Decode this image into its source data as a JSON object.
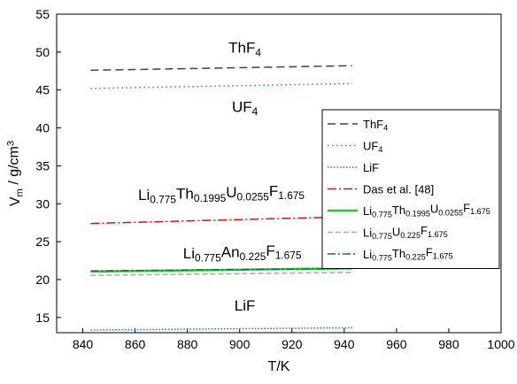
{
  "chart_data": {
    "type": "line",
    "xlabel": "T/K",
    "ylabel": "V_m / g/cm^3",
    "xlim": [
      830,
      1000
    ],
    "ylim": [
      13,
      55
    ],
    "xticks": [
      840,
      860,
      880,
      900,
      920,
      940,
      960,
      980,
      1000
    ],
    "yticks": [
      15,
      20,
      25,
      30,
      35,
      40,
      45,
      50,
      55
    ],
    "grid": false,
    "legend_position": "right",
    "series": [
      {
        "name": "ThF4",
        "color": "#444444",
        "dash": "9,5",
        "width": 1.5,
        "x": [
          843,
          943
        ],
        "y": [
          47.6,
          48.2
        ]
      },
      {
        "name": "UF4",
        "color": "#2e9e2e",
        "dash": "1.5,3.5",
        "width": 1.5,
        "x": [
          843,
          943
        ],
        "y": [
          45.2,
          45.85
        ]
      },
      {
        "name": "LiF",
        "color": "#2f6fd6",
        "dash": "1.5,2",
        "width": 1.5,
        "x": [
          843,
          943
        ],
        "y": [
          13.35,
          13.65
        ]
      },
      {
        "name": "Das et al. [48]",
        "color": "#e01010",
        "dash": "10,3,2,3",
        "width": 1.5,
        "x": [
          843,
          943
        ],
        "y": [
          27.4,
          28.3
        ]
      },
      {
        "name": "Li0.775Th0.1995U0.0255F1.675",
        "color": "#1ad21a",
        "dash": "",
        "width": 2.5,
        "x": [
          843,
          943
        ],
        "y": [
          21.05,
          21.5
        ]
      },
      {
        "name": "Li0.775U0.225F1.675",
        "color": "#aaaaaa",
        "dash": "6,3",
        "width": 1.5,
        "x": [
          843,
          943
        ],
        "y": [
          20.55,
          20.95
        ]
      },
      {
        "name": "Li0.775Th0.225F1.675",
        "color": "#1f6b55",
        "dash": "9,3,2,3",
        "width": 1.5,
        "x": [
          843,
          943
        ],
        "y": [
          21.15,
          21.45
        ]
      }
    ],
    "annotations": [
      {
        "text": "ThF4",
        "x": 902,
        "y": 49.9
      },
      {
        "text": "UF4",
        "x": 902,
        "y": 42.1
      },
      {
        "text": "Li0.775Th0.1995U0.0255F1.675",
        "x": 893,
        "y": 30.5
      },
      {
        "text": "Li0.775An0.225F1.675",
        "x": 901,
        "y": 22.8
      },
      {
        "text": "LiF",
        "x": 902,
        "y": 15.9
      }
    ]
  }
}
